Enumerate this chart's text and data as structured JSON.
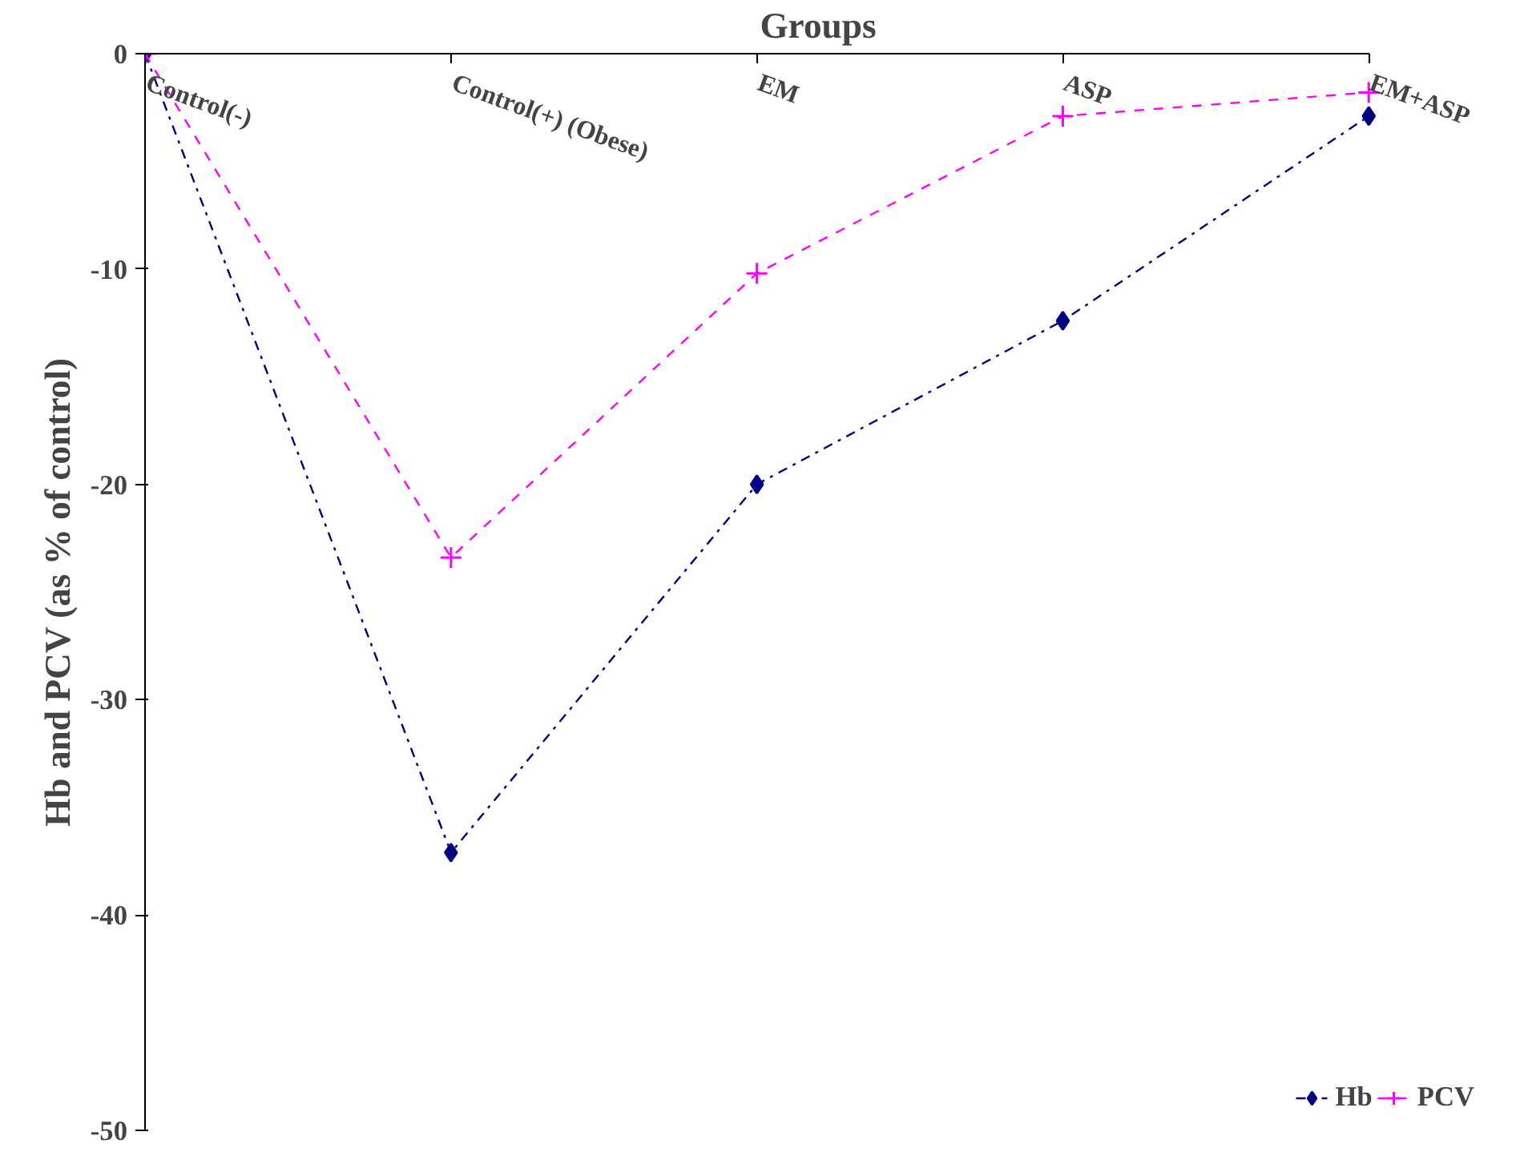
{
  "chart_data": {
    "type": "line",
    "xlabel": "Groups",
    "ylabel": "Hb and PCV (as % of control)",
    "categories": [
      "Control(-)",
      "Control(+) (Obese)",
      "EM",
      "ASP",
      "EM+ASP"
    ],
    "series": [
      {
        "name": "Hb",
        "color": "#000080",
        "values": [
          0,
          -37.1,
          -20.0,
          -12.4,
          -2.9
        ],
        "marker": "diamond",
        "line_style": "dashdot"
      },
      {
        "name": "PCV",
        "color": "#ff00ff",
        "values": [
          0,
          -23.4,
          -10.2,
          -2.9,
          -1.8
        ],
        "marker": "cross",
        "line_style": "dashed"
      }
    ],
    "ylim": [
      -50,
      0
    ],
    "yticks": [
      0,
      -10,
      -20,
      -30,
      -40,
      -50
    ],
    "grid": false,
    "legend": "bottom right"
  }
}
